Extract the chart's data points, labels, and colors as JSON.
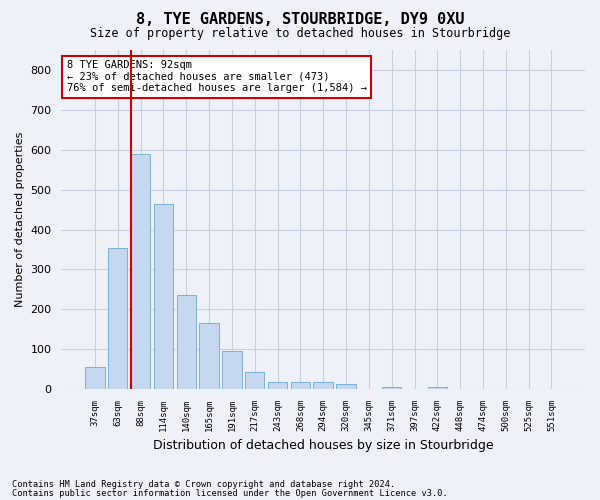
{
  "title": "8, TYE GARDENS, STOURBRIDGE, DY9 0XU",
  "subtitle": "Size of property relative to detached houses in Stourbridge",
  "xlabel": "Distribution of detached houses by size in Stourbridge",
  "ylabel": "Number of detached properties",
  "categories": [
    "37sqm",
    "63sqm",
    "88sqm",
    "114sqm",
    "140sqm",
    "165sqm",
    "191sqm",
    "217sqm",
    "243sqm",
    "268sqm",
    "294sqm",
    "320sqm",
    "345sqm",
    "371sqm",
    "397sqm",
    "422sqm",
    "448sqm",
    "474sqm",
    "500sqm",
    "525sqm",
    "551sqm"
  ],
  "values": [
    55,
    355,
    590,
    465,
    235,
    165,
    95,
    42,
    18,
    18,
    18,
    12,
    0,
    5,
    0,
    5,
    0,
    0,
    0,
    0,
    0
  ],
  "bar_color": "#c5d8f0",
  "bar_edge_color": "#7aafd4",
  "grid_color": "#c8d0e0",
  "background_color": "#eef2f8",
  "vline_color": "#cc0000",
  "vline_x_index": 2,
  "annotation_text_line1": "8 TYE GARDENS: 92sqm",
  "annotation_text_line2": "← 23% of detached houses are smaller (473)",
  "annotation_text_line3": "76% of semi-detached houses are larger (1,584) →",
  "annotation_box_color": "#ffffff",
  "annotation_box_edge": "#cc0000",
  "ylim": [
    0,
    850
  ],
  "yticks": [
    0,
    100,
    200,
    300,
    400,
    500,
    600,
    700,
    800
  ],
  "footnote1": "Contains HM Land Registry data © Crown copyright and database right 2024.",
  "footnote2": "Contains public sector information licensed under the Open Government Licence v3.0."
}
